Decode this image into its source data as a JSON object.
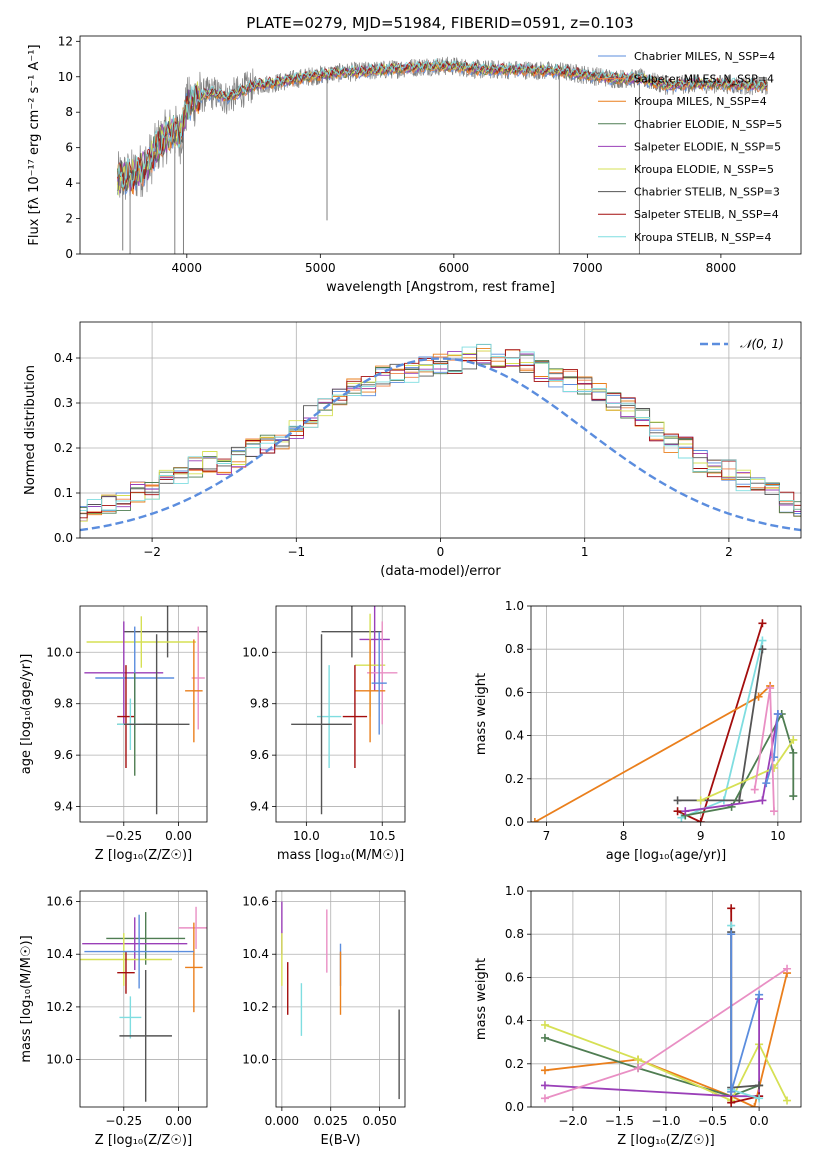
{
  "figure_title": "PLATE=0279, MJD=51984, FIBERID=0591, z=0.103",
  "colors": {
    "chabrier_miles": "#5b8dde",
    "salpeter_miles": "#f0824a",
    "kroupa_miles": "#ea7f1c",
    "chabrier_elodie": "#4f7d52",
    "salpeter_elodie": "#9a3fb8",
    "kroupa_elodie": "#d6e054",
    "chabrier_stelib": "#555555",
    "salpeter_stelib": "#a30d0d",
    "kroupa_stelib": "#7fdde0",
    "data": "#808080",
    "pink": "#e98fc4",
    "gaussian": "#5b8dde"
  },
  "chart_data": [
    {
      "id": "spectrum",
      "type": "line",
      "title": "PLATE=0279, MJD=51984, FIBERID=0591, z=0.103",
      "xlabel": "wavelength [Angstrom, rest frame]",
      "ylabel": "Flux [fλ 10⁻¹⁷ erg cm⁻² s⁻¹ A⁻¹]",
      "xlim": [
        3200,
        8600
      ],
      "ylim": [
        0,
        12.3
      ],
      "xticks": [
        4000,
        5000,
        6000,
        7000,
        8000
      ],
      "yticks": [
        0,
        2,
        4,
        6,
        8,
        10,
        12
      ],
      "legend_position": "right",
      "legend": [
        {
          "label": "Chabrier MILES, N_SSP=4",
          "color_key": "chabrier_miles"
        },
        {
          "label": "Salpeter MILES, N_SSP=4",
          "color_key": "salpeter_miles"
        },
        {
          "label": "Kroupa MILES, N_SSP=4",
          "color_key": "kroupa_miles"
        },
        {
          "label": "Chabrier ELODIE, N_SSP=5",
          "color_key": "chabrier_elodie"
        },
        {
          "label": "Salpeter ELODIE, N_SSP=5",
          "color_key": "salpeter_elodie"
        },
        {
          "label": "Kroupa ELODIE, N_SSP=5",
          "color_key": "kroupa_elodie"
        },
        {
          "label": "Chabrier STELIB, N_SSP=3",
          "color_key": "chabrier_stelib"
        },
        {
          "label": "Salpeter STELIB, N_SSP=4",
          "color_key": "salpeter_stelib"
        },
        {
          "label": "Kroupa STELIB, N_SSP=4",
          "color_key": "kroupa_stelib"
        }
      ],
      "continuum": [
        [
          3480,
          4.2
        ],
        [
          3600,
          4.4
        ],
        [
          3700,
          5.0
        ],
        [
          3800,
          6.3
        ],
        [
          3900,
          7.0
        ],
        [
          3950,
          6.6
        ],
        [
          4000,
          8.4
        ],
        [
          4100,
          8.9
        ],
        [
          4200,
          9.1
        ],
        [
          4300,
          8.8
        ],
        [
          4500,
          9.5
        ],
        [
          4700,
          9.7
        ],
        [
          4900,
          10.0
        ],
        [
          5100,
          10.2
        ],
        [
          5300,
          10.3
        ],
        [
          5500,
          10.4
        ],
        [
          5800,
          10.6
        ],
        [
          6000,
          10.6
        ],
        [
          6200,
          10.4
        ],
        [
          6500,
          10.4
        ],
        [
          6800,
          10.3
        ],
        [
          7000,
          10.1
        ],
        [
          7200,
          9.9
        ],
        [
          7400,
          9.9
        ],
        [
          7600,
          9.5
        ],
        [
          7800,
          9.6
        ],
        [
          8000,
          9.6
        ],
        [
          8200,
          9.5
        ],
        [
          8350,
          9.5
        ]
      ],
      "spikes": [
        [
          3520,
          0.2
        ],
        [
          3575,
          0
        ],
        [
          3910,
          0
        ],
        [
          3975,
          0
        ],
        [
          5050,
          1.9
        ],
        [
          6790,
          0
        ],
        [
          7390,
          0
        ]
      ]
    },
    {
      "id": "residuals",
      "type": "histogram",
      "xlabel": "(data-model)/error",
      "ylabel": "Normed distribution",
      "xlim": [
        -2.5,
        2.5
      ],
      "ylim": [
        0,
        0.48
      ],
      "xticks": [
        -2,
        -1,
        0,
        1,
        2
      ],
      "yticks": [
        0.0,
        0.1,
        0.2,
        0.3,
        0.4
      ],
      "grid": true,
      "legend_position": "top-right",
      "legend": [
        {
          "label": "𝒩(0, 1)",
          "color_key": "gaussian",
          "dash": true
        }
      ],
      "bin_width": 0.1,
      "base_values": [
        0.03,
        0.035,
        0.04,
        0.045,
        0.05,
        0.06,
        0.07,
        0.08,
        0.085,
        0.1,
        0.11,
        0.13,
        0.14,
        0.16,
        0.17,
        0.16,
        0.18,
        0.2,
        0.21,
        0.22,
        0.24,
        0.27,
        0.29,
        0.31,
        0.33,
        0.34,
        0.36,
        0.37,
        0.37,
        0.38,
        0.39,
        0.39,
        0.4,
        0.41,
        0.4,
        0.4,
        0.39,
        0.37,
        0.36,
        0.35,
        0.34,
        0.32,
        0.3,
        0.29,
        0.27,
        0.24,
        0.21,
        0.2,
        0.17,
        0.16,
        0.15,
        0.13,
        0.11,
        0.1,
        0.08,
        0.07,
        0.06,
        0.05,
        0.04,
        0.035,
        0.03
      ]
    },
    {
      "id": "age_vs_Z",
      "type": "scatter",
      "xlabel": "Z [log₁₀(Z/Z☉)]",
      "ylabel": "age  [log₁₀(age/yr)]",
      "xlim": [
        -0.45,
        0.13
      ],
      "ylim": [
        9.34,
        10.18
      ],
      "xticks": [
        -0.25,
        0.0
      ],
      "xticklabels": [
        "−0.25",
        "0.00"
      ],
      "yticks": [
        9.4,
        9.6,
        9.8,
        10.0
      ],
      "grid": true,
      "errorbars": [
        {
          "c": "chabrier_stelib",
          "x": -0.05,
          "xe": 0.2,
          "y": 10.08,
          "ye": 0.1
        },
        {
          "c": "kroupa_elodie",
          "x": -0.17,
          "xe": 0.25,
          "y": 10.04,
          "ye": 0.1
        },
        {
          "c": "salpeter_elodie",
          "x": -0.25,
          "xe": 0.18,
          "y": 9.92,
          "ye": 0.2
        },
        {
          "c": "chabrier_miles",
          "x": -0.2,
          "xe": 0.18,
          "y": 9.9,
          "ye": 0.2
        },
        {
          "c": "pink",
          "x": 0.09,
          "xe": 0.03,
          "y": 9.9,
          "ye": 0.2
        },
        {
          "c": "kroupa_miles",
          "x": 0.07,
          "xe": 0.04,
          "y": 9.85,
          "ye": 0.2
        },
        {
          "c": "salpeter_stelib",
          "x": -0.24,
          "xe": 0.04,
          "y": 9.75,
          "ye": 0.2
        },
        {
          "c": "chabrier_elodie",
          "x": -0.2,
          "xe": 0.08,
          "y": 9.72,
          "ye": 0.2
        },
        {
          "c": "kroupa_stelib",
          "x": -0.22,
          "xe": 0.06,
          "y": 9.72,
          "ye": 0.1
        },
        {
          "c": "chabrier_stelib",
          "x": -0.1,
          "xe": 0.15,
          "y": 9.72,
          "ye": 0.35
        }
      ]
    },
    {
      "id": "age_vs_mass",
      "type": "scatter",
      "xlabel": "mass [log₁₀(M/M☉)]",
      "ylabel": "",
      "xlim": [
        9.8,
        10.65
      ],
      "ylim": [
        9.34,
        10.18
      ],
      "xticks": [
        10.0,
        10.5
      ],
      "yticks": [
        9.4,
        9.6,
        9.8,
        10.0
      ],
      "grid": true,
      "errorbars": [
        {
          "c": "chabrier_stelib",
          "x": 10.3,
          "xe": 0.2,
          "y": 10.08,
          "ye": 0.1
        },
        {
          "c": "salpeter_elodie",
          "x": 10.45,
          "xe": 0.1,
          "y": 10.05,
          "ye": 0.2
        },
        {
          "c": "kroupa_elodie",
          "x": 10.42,
          "xe": 0.1,
          "y": 9.95,
          "ye": 0.2
        },
        {
          "c": "pink",
          "x": 10.5,
          "xe": 0.1,
          "y": 9.92,
          "ye": 0.2
        },
        {
          "c": "kroupa_miles",
          "x": 10.42,
          "xe": 0.1,
          "y": 9.85,
          "ye": 0.2
        },
        {
          "c": "chabrier_miles",
          "x": 10.48,
          "xe": 0.05,
          "y": 9.88,
          "ye": 0.2
        },
        {
          "c": "salpeter_stelib",
          "x": 10.32,
          "xe": 0.08,
          "y": 9.75,
          "ye": 0.2
        },
        {
          "c": "kroupa_stelib",
          "x": 10.15,
          "xe": 0.08,
          "y": 9.75,
          "ye": 0.2
        },
        {
          "c": "chabrier_stelib",
          "x": 10.1,
          "xe": 0.2,
          "y": 9.72,
          "ye": 0.35
        }
      ]
    },
    {
      "id": "weight_vs_age",
      "type": "line",
      "xlabel": "age  [log₁₀(age/yr)]",
      "ylabel": "mass weight",
      "xlim": [
        6.8,
        10.3
      ],
      "ylim": [
        0,
        1.0
      ],
      "xticks": [
        7,
        8,
        9,
        10
      ],
      "yticks": [
        0.0,
        0.2,
        0.4,
        0.6,
        0.8,
        1.0
      ],
      "grid": true,
      "series": [
        {
          "c": "salpeter_stelib",
          "points": [
            [
              8.7,
              0.05
            ],
            [
              9.0,
              0.0
            ],
            [
              9.8,
              0.92
            ]
          ]
        },
        {
          "c": "kroupa_miles",
          "points": [
            [
              6.85,
              0.0
            ],
            [
              9.75,
              0.58
            ],
            [
              9.9,
              0.63
            ]
          ]
        },
        {
          "c": "kroupa_stelib",
          "points": [
            [
              8.75,
              0.02
            ],
            [
              9.3,
              0.1
            ],
            [
              9.8,
              0.84
            ]
          ]
        },
        {
          "c": "chabrier_stelib",
          "points": [
            [
              8.7,
              0.1
            ],
            [
              9.5,
              0.1
            ],
            [
              9.8,
              0.8
            ]
          ]
        },
        {
          "c": "chabrier_elodie",
          "points": [
            [
              8.8,
              0.03
            ],
            [
              9.4,
              0.07
            ],
            [
              10.05,
              0.5
            ],
            [
              10.2,
              0.32
            ],
            [
              10.2,
              0.12
            ]
          ]
        },
        {
          "c": "salpeter_elodie",
          "points": [
            [
              8.8,
              0.05
            ],
            [
              9.8,
              0.1
            ],
            [
              10.0,
              0.5
            ]
          ]
        },
        {
          "c": "kroupa_elodie",
          "points": [
            [
              9.0,
              0.1
            ],
            [
              9.95,
              0.25
            ],
            [
              10.2,
              0.38
            ]
          ]
        },
        {
          "c": "chabrier_miles",
          "points": [
            [
              9.85,
              0.18
            ],
            [
              9.95,
              0.3
            ],
            [
              10.0,
              0.5
            ]
          ]
        },
        {
          "c": "pink",
          "points": [
            [
              9.7,
              0.15
            ],
            [
              9.9,
              0.62
            ],
            [
              9.95,
              0.05
            ]
          ]
        }
      ]
    },
    {
      "id": "mass_vs_Z",
      "type": "scatter",
      "xlabel": "Z [log₁₀(Z/Z☉)]",
      "ylabel": "mass [log₁₀(M/M☉)]",
      "xlim": [
        -0.45,
        0.13
      ],
      "ylim": [
        9.82,
        10.64
      ],
      "xticks": [
        -0.25,
        0.0
      ],
      "xticklabels": [
        "−0.25",
        "0.00"
      ],
      "yticks": [
        10.0,
        10.2,
        10.4,
        10.6
      ],
      "grid": true,
      "errorbars": [
        {
          "c": "pink",
          "x": 0.08,
          "xe": 0.08,
          "y": 10.5,
          "ye": 0.08
        },
        {
          "c": "chabrier_elodie",
          "x": -0.15,
          "xe": 0.18,
          "y": 10.46,
          "ye": 0.1
        },
        {
          "c": "salpeter_elodie",
          "x": -0.2,
          "xe": 0.24,
          "y": 10.44,
          "ye": 0.1
        },
        {
          "c": "kroupa_elodie",
          "x": -0.25,
          "xe": 0.22,
          "y": 10.38,
          "ye": 0.1
        },
        {
          "c": "kroupa_miles",
          "x": 0.07,
          "xe": 0.04,
          "y": 10.35,
          "ye": 0.17
        },
        {
          "c": "salpeter_stelib",
          "x": -0.24,
          "xe": 0.04,
          "y": 10.33,
          "ye": 0.08
        },
        {
          "c": "chabrier_miles",
          "x": -0.18,
          "xe": 0.25,
          "y": 10.41,
          "ye": 0.14
        },
        {
          "c": "kroupa_stelib",
          "x": -0.22,
          "xe": 0.05,
          "y": 10.16,
          "ye": 0.08
        },
        {
          "c": "chabrier_stelib",
          "x": -0.15,
          "xe": 0.12,
          "y": 10.09,
          "ye": 0.25
        }
      ]
    },
    {
      "id": "mass_vs_ebv",
      "type": "scatter",
      "xlabel": "E(B-V)",
      "ylabel": "",
      "xlim": [
        -0.003,
        0.063
      ],
      "ylim": [
        9.82,
        10.64
      ],
      "xticks": [
        0.0,
        0.025,
        0.05
      ],
      "xticklabels": [
        "0.000",
        "0.025",
        "0.050"
      ],
      "yticks": [
        10.0,
        10.2,
        10.4,
        10.6
      ],
      "grid": true,
      "errorbars": [
        {
          "c": "salpeter_elodie",
          "x": 0.0,
          "xe": 0,
          "y": 10.5,
          "ye": 0.1
        },
        {
          "c": "kroupa_elodie",
          "x": 0.0,
          "xe": 0,
          "y": 10.38,
          "ye": 0.1
        },
        {
          "c": "salpeter_stelib",
          "x": 0.003,
          "xe": 0,
          "y": 10.27,
          "ye": 0.1
        },
        {
          "c": "kroupa_stelib",
          "x": 0.01,
          "xe": 0,
          "y": 10.19,
          "ye": 0.1
        },
        {
          "c": "pink",
          "x": 0.023,
          "xe": 0,
          "y": 10.45,
          "ye": 0.12
        },
        {
          "c": "chabrier_miles",
          "x": 0.03,
          "xe": 0,
          "y": 10.36,
          "ye": 0.08
        },
        {
          "c": "kroupa_miles",
          "x": 0.03,
          "xe": 0,
          "y": 10.29,
          "ye": 0.12
        },
        {
          "c": "chabrier_stelib",
          "x": 0.06,
          "xe": 0,
          "y": 10.02,
          "ye": 0.17
        }
      ]
    },
    {
      "id": "weight_vs_Z",
      "type": "line",
      "xlabel": "Z [log₁₀(Z/Z☉)]",
      "ylabel": "mass weight",
      "xlim": [
        -2.45,
        0.45
      ],
      "ylim": [
        0,
        1.0
      ],
      "xticks": [
        -2.0,
        -1.5,
        -1.0,
        -0.5,
        0.0
      ],
      "xticklabels": [
        "−2.0",
        "−1.5",
        "−1.0",
        "−0.5",
        "0.0"
      ],
      "yticks": [
        0.0,
        0.2,
        0.4,
        0.6,
        0.8,
        1.0
      ],
      "grid": true,
      "series": [
        {
          "c": "kroupa_miles",
          "points": [
            [
              -2.3,
              0.17
            ],
            [
              -1.3,
              0.22
            ],
            [
              -0.3,
              0.05
            ],
            [
              -0.05,
              0.0
            ],
            [
              0.3,
              0.62
            ]
          ]
        },
        {
          "c": "chabrier_elodie",
          "points": [
            [
              -2.3,
              0.32
            ],
            [
              -1.3,
              0.18
            ],
            [
              -0.3,
              0.05
            ],
            [
              0.0,
              0.1
            ]
          ]
        },
        {
          "c": "kroupa_elodie",
          "points": [
            [
              -2.3,
              0.38
            ],
            [
              -1.3,
              0.22
            ],
            [
              -0.3,
              0.03
            ],
            [
              0.0,
              0.29
            ],
            [
              0.3,
              0.03
            ]
          ]
        },
        {
          "c": "salpeter_elodie",
          "points": [
            [
              -2.3,
              0.1
            ],
            [
              -0.3,
              0.05
            ],
            [
              0.0,
              0.05
            ],
            [
              0.0,
              0.5
            ]
          ]
        },
        {
          "c": "pink",
          "points": [
            [
              -2.3,
              0.04
            ],
            [
              -1.3,
              0.18
            ],
            [
              0.3,
              0.64
            ]
          ]
        },
        {
          "c": "salpeter_stelib",
          "points": [
            [
              -0.3,
              0.92
            ],
            [
              -0.3,
              0.02
            ],
            [
              0.0,
              0.05
            ]
          ]
        },
        {
          "c": "kroupa_stelib",
          "points": [
            [
              -0.3,
              0.84
            ],
            [
              -0.3,
              0.08
            ],
            [
              0.0,
              0.04
            ]
          ]
        },
        {
          "c": "chabrier_stelib",
          "points": [
            [
              -0.3,
              0.81
            ],
            [
              -0.3,
              0.09
            ],
            [
              0.0,
              0.1
            ]
          ]
        },
        {
          "c": "chabrier_miles",
          "points": [
            [
              -0.3,
              0.8
            ],
            [
              -0.3,
              0.07
            ],
            [
              0.0,
              0.52
            ]
          ]
        }
      ]
    }
  ]
}
